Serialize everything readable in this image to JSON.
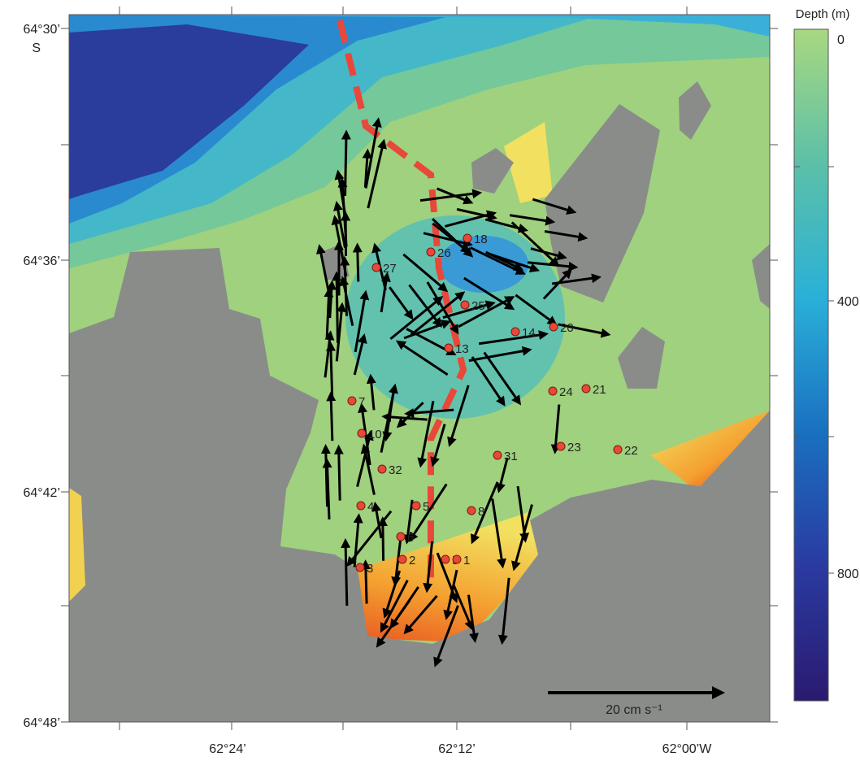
{
  "map": {
    "lat_labels": [
      "64°30’",
      "64°36’",
      "64°42’",
      "64°48’"
    ],
    "hemisphere_label": "S",
    "lon_labels": [
      "62°24’",
      "62°12’",
      "62°00’W"
    ],
    "colorbar": {
      "title": "Depth (m)",
      "labels": [
        "0",
        "400",
        "800"
      ]
    },
    "scale_label": "20 cm s⁻¹",
    "stations": [
      "18",
      "26",
      "27",
      "25",
      "13",
      "14",
      "20",
      "24",
      "21",
      "7",
      "10",
      "31",
      "23",
      "22",
      "32",
      "4",
      "5",
      "8",
      "6",
      "3",
      "2",
      "5",
      "1"
    ]
  }
}
